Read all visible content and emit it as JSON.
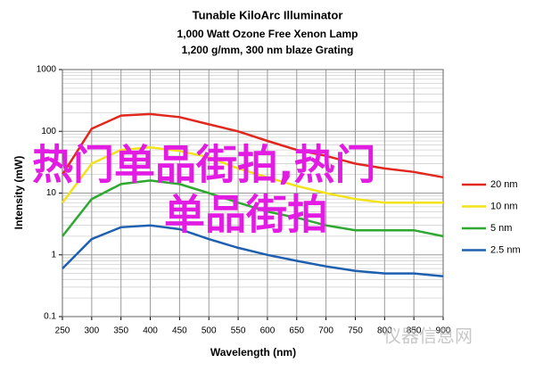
{
  "chart_data": {
    "type": "line",
    "title": "Tunable KiloArc Illuminator",
    "subtitle": [
      "1,000 Watt Ozone Free Xenon Lamp",
      "1,200 g/mm, 300 nm blaze Grating"
    ],
    "xlabel": "Wavelength (nm)",
    "ylabel": "Intensity (mW)",
    "x": [
      250,
      300,
      350,
      400,
      450,
      500,
      550,
      600,
      650,
      700,
      750,
      800,
      850,
      900
    ],
    "series": [
      {
        "name": "20 nm",
        "color": "#e0281e",
        "values": [
          20,
          110,
          180,
          190,
          170,
          130,
          100,
          70,
          50,
          40,
          30,
          25,
          22,
          18
        ]
      },
      {
        "name": "10 nm",
        "color": "#f2e21a",
        "values": [
          7,
          30,
          50,
          55,
          48,
          38,
          25,
          18,
          13,
          10,
          8,
          7,
          7,
          7
        ]
      },
      {
        "name": "5 nm",
        "color": "#2ea830",
        "values": [
          2,
          8,
          14,
          16,
          14,
          10,
          7,
          5,
          4,
          3,
          2.5,
          2.5,
          2.5,
          2
        ]
      },
      {
        "name": "2.5 nm",
        "color": "#1f5fb0",
        "values": [
          0.6,
          1.8,
          2.8,
          3,
          2.6,
          1.8,
          1.3,
          1,
          0.8,
          0.65,
          0.55,
          0.5,
          0.5,
          0.45
        ]
      }
    ],
    "xlim": [
      250,
      900
    ],
    "xticks": [
      250,
      300,
      350,
      400,
      450,
      500,
      550,
      600,
      650,
      700,
      750,
      800,
      850,
      900
    ],
    "ylim": [
      0.1,
      1000
    ],
    "yticks": [
      0.1,
      1,
      10,
      100,
      1000
    ],
    "log_y": true,
    "grid": true,
    "minor_grid": true,
    "legend": "right",
    "overlay_lines": [
      "热门单品街拍,热门",
      "单品街拍"
    ],
    "watermark": "仪器信息网"
  }
}
